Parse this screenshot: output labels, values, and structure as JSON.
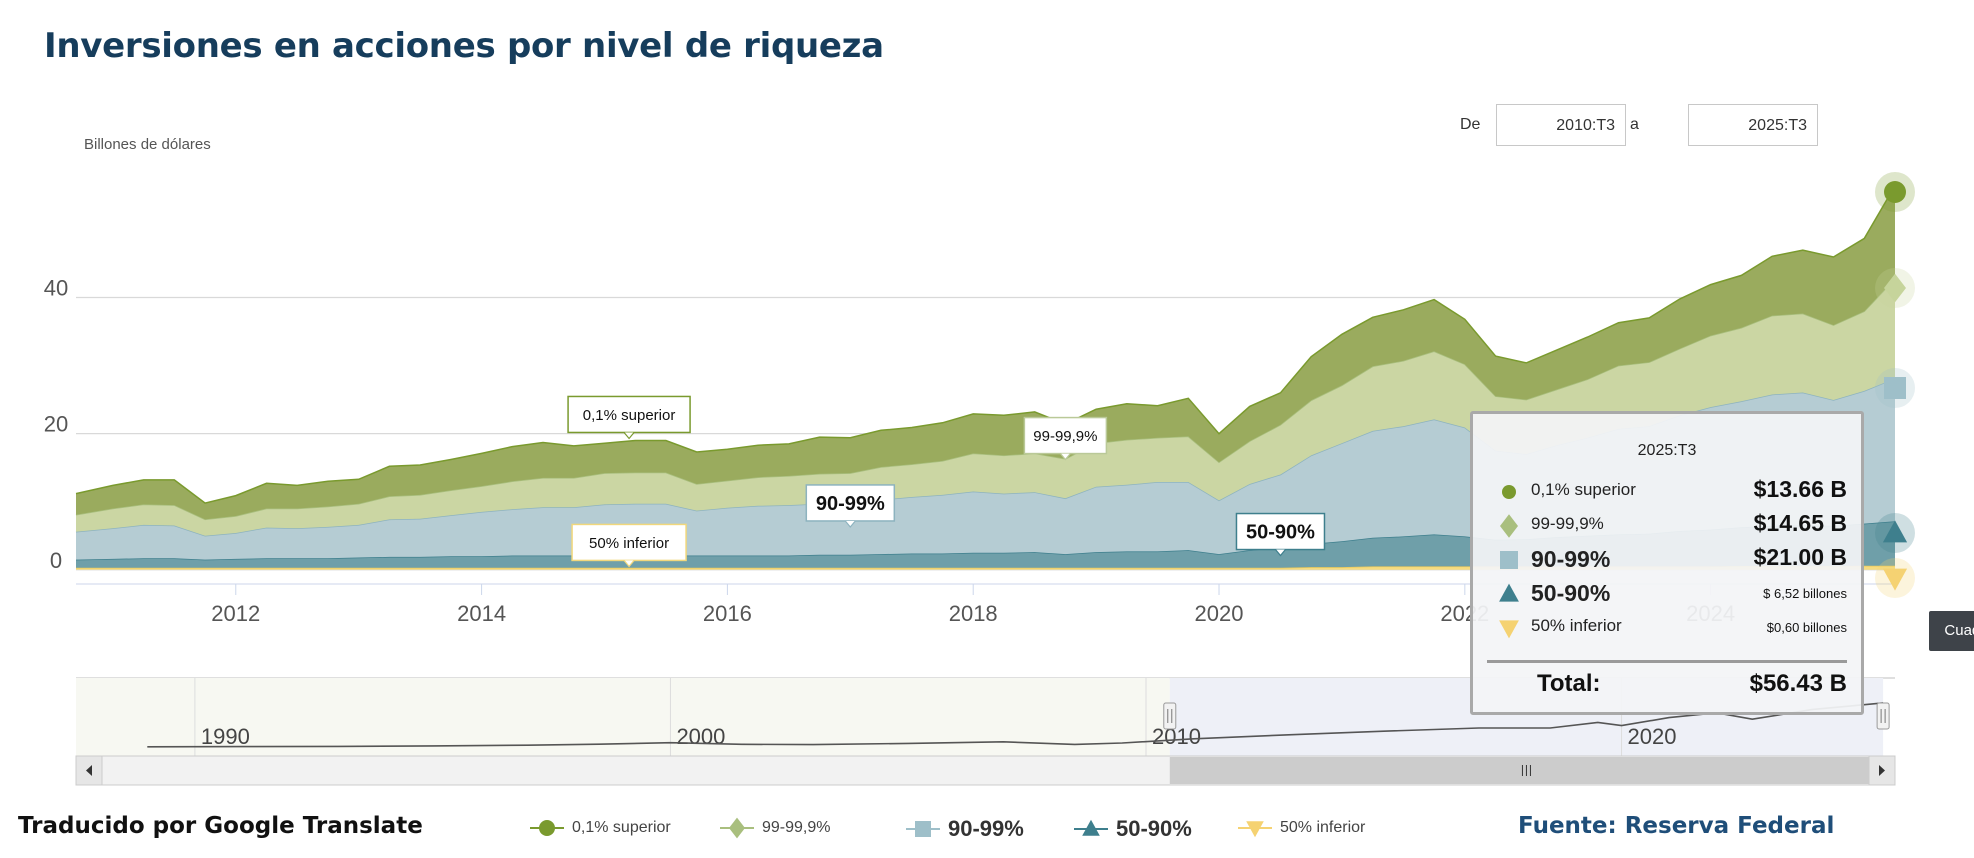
{
  "title": "Inversiones en acciones por nivel de riqueza",
  "range": {
    "from_label": "De",
    "from_value": "2010:T3",
    "to_label": "a",
    "to_value": "2025:T3"
  },
  "footer": {
    "translated": "Traducido por Google Translate",
    "source": "Fuente: Reserva Federal"
  },
  "colors": {
    "top01": "#9aab5e",
    "top01_line": "#7a9a2e",
    "p99": "#cbd6a3",
    "p99_line": "#a9bf7e",
    "p90": "#b5ccd3",
    "p90_line": "#8db3bf",
    "p50": "#6f9fa9",
    "p50_line": "#3e7f8d",
    "bottom50": "#f6dc80",
    "navigator_bg": "#eef0f7"
  },
  "tooltip": {
    "header": "2025:T3",
    "rows": [
      {
        "name": "0,1% superior",
        "value": "$13.66 B",
        "big": false,
        "small": false
      },
      {
        "name": "99-99,9%",
        "value": "$14.65 B",
        "big": false,
        "small": false
      },
      {
        "name": "90-99%",
        "value": "$21.00 B",
        "big": true,
        "small": false
      },
      {
        "name": "50-90%",
        "value": "$ 6,52 billones",
        "big": true,
        "small": true
      },
      {
        "name": "50% inferior",
        "value": "$0,60 billones",
        "big": false,
        "small": true
      }
    ],
    "total_label": "Total:",
    "total_value": "$56.43 B"
  },
  "cuadro_button": "Cuadro",
  "legend": [
    {
      "name": "0,1% superior",
      "shape": "circle",
      "big": false
    },
    {
      "name": "99-99,9%",
      "shape": "diamond",
      "big": false
    },
    {
      "name": "90-99%",
      "shape": "square",
      "big": true
    },
    {
      "name": "50-90%",
      "shape": "triangle",
      "big": true
    },
    {
      "name": "50% inferior",
      "shape": "triangle-down",
      "big": false
    }
  ],
  "chart_data": {
    "type": "area",
    "stacked": true,
    "title": "Inversiones en acciones por nivel de riqueza",
    "ylabel": "Billones de dólares",
    "xlabel": "",
    "ylim": [
      -1.5,
      58
    ],
    "yticks": [
      0,
      20,
      40
    ],
    "xticks": [
      "2012",
      "2014",
      "2016",
      "2018",
      "2020",
      "2022",
      "2024"
    ],
    "x": [
      2010.7,
      2011.0,
      2011.25,
      2011.5,
      2011.75,
      2012.0,
      2012.25,
      2012.5,
      2012.75,
      2013.0,
      2013.25,
      2013.5,
      2013.75,
      2014.0,
      2014.25,
      2014.5,
      2014.75,
      2015.0,
      2015.25,
      2015.5,
      2015.75,
      2016.0,
      2016.25,
      2016.5,
      2016.75,
      2017.0,
      2017.25,
      2017.5,
      2017.75,
      2018.0,
      2018.25,
      2018.5,
      2018.75,
      2019.0,
      2019.25,
      2019.5,
      2019.75,
      2020.0,
      2020.25,
      2020.5,
      2020.75,
      2021.0,
      2021.25,
      2021.5,
      2021.75,
      2022.0,
      2022.25,
      2022.5,
      2022.75,
      2023.0,
      2023.25,
      2023.5,
      2023.75,
      2024.0,
      2024.25,
      2024.5,
      2024.75,
      2025.0,
      2025.25,
      2025.5
    ],
    "series": [
      {
        "name": "50% inferior",
        "values": [
          0.3,
          0.3,
          0.3,
          0.3,
          0.3,
          0.3,
          0.3,
          0.3,
          0.3,
          0.3,
          0.3,
          0.3,
          0.3,
          0.3,
          0.3,
          0.3,
          0.3,
          0.3,
          0.3,
          0.3,
          0.3,
          0.3,
          0.3,
          0.3,
          0.3,
          0.3,
          0.3,
          0.3,
          0.3,
          0.3,
          0.3,
          0.3,
          0.3,
          0.3,
          0.3,
          0.3,
          0.3,
          0.3,
          0.3,
          0.3,
          0.4,
          0.4,
          0.5,
          0.5,
          0.5,
          0.5,
          0.5,
          0.5,
          0.5,
          0.5,
          0.5,
          0.5,
          0.5,
          0.5,
          0.55,
          0.55,
          0.55,
          0.55,
          0.58,
          0.6
        ]
      },
      {
        "name": "50-90%",
        "values": [
          1.2,
          1.3,
          1.4,
          1.4,
          1.2,
          1.3,
          1.4,
          1.4,
          1.4,
          1.5,
          1.6,
          1.6,
          1.7,
          1.7,
          1.8,
          1.8,
          1.8,
          1.8,
          1.8,
          1.8,
          1.8,
          1.8,
          1.8,
          1.8,
          1.9,
          1.9,
          2.0,
          2.1,
          2.1,
          2.2,
          2.2,
          2.3,
          2.0,
          2.3,
          2.4,
          2.4,
          2.6,
          2.0,
          2.6,
          3.0,
          3.4,
          3.8,
          4.2,
          4.4,
          4.7,
          4.4,
          3.9,
          4.0,
          4.3,
          4.5,
          4.7,
          4.8,
          5.2,
          5.4,
          5.7,
          5.9,
          6.0,
          5.9,
          6.2,
          6.52
        ]
      },
      {
        "name": "90-99%",
        "values": [
          4.1,
          4.5,
          4.9,
          4.8,
          3.5,
          3.8,
          4.5,
          4.4,
          4.6,
          4.8,
          5.5,
          5.6,
          6.0,
          6.5,
          6.8,
          7.1,
          7.1,
          7.5,
          7.6,
          7.6,
          6.6,
          7.0,
          7.3,
          7.4,
          7.5,
          7.6,
          8.0,
          8.3,
          8.6,
          9.0,
          8.7,
          8.8,
          8.2,
          9.6,
          9.8,
          10.2,
          10.0,
          7.9,
          9.7,
          10.7,
          13.0,
          14.4,
          15.7,
          16.2,
          16.9,
          16.0,
          13.1,
          12.5,
          13.5,
          14.4,
          15.5,
          15.8,
          17.0,
          18.0,
          18.5,
          19.3,
          19.5,
          18.5,
          19.5,
          21.0
        ]
      },
      {
        "name": "99-99,9%",
        "values": [
          2.5,
          2.9,
          3.0,
          3.0,
          2.4,
          2.5,
          2.8,
          2.9,
          3.0,
          3.1,
          3.4,
          3.5,
          3.7,
          3.8,
          4.1,
          4.3,
          4.3,
          4.6,
          4.6,
          4.6,
          3.9,
          4.0,
          4.2,
          4.3,
          4.4,
          4.4,
          4.8,
          4.8,
          5.0,
          5.6,
          5.6,
          5.7,
          5.8,
          6.4,
          6.6,
          6.5,
          6.7,
          5.6,
          6.3,
          7.3,
          8.1,
          8.5,
          9.5,
          9.6,
          10.0,
          9.3,
          8.0,
          8.0,
          8.2,
          8.6,
          9.3,
          9.4,
          9.8,
          10.5,
          10.8,
          11.6,
          11.6,
          11.0,
          11.7,
          14.65
        ]
      },
      {
        "name": "0,1% superior",
        "values": [
          3.1,
          3.4,
          3.6,
          3.7,
          2.4,
          3.0,
          3.7,
          3.4,
          3.7,
          3.6,
          4.4,
          4.4,
          4.5,
          4.8,
          5.1,
          5.2,
          4.7,
          4.4,
          4.7,
          4.7,
          4.7,
          4.6,
          4.7,
          4.7,
          5.4,
          5.2,
          5.4,
          5.4,
          5.6,
          5.8,
          5.9,
          6.1,
          5.1,
          5.0,
          5.3,
          4.7,
          5.6,
          4.2,
          5.1,
          4.7,
          6.4,
          7.5,
          7.2,
          7.5,
          7.6,
          6.6,
          5.9,
          5.4,
          5.8,
          6.2,
          6.3,
          6.5,
          7.3,
          7.5,
          7.7,
          8.7,
          9.3,
          10.0,
          10.7,
          13.66
        ]
      }
    ],
    "annotations": [
      {
        "text": "0,1% superior",
        "x": 2015.2,
        "series": "0,1% superior",
        "big": false
      },
      {
        "text": "99-99,9%",
        "x": 2018.75,
        "series": "99-99,9%",
        "big": false
      },
      {
        "text": "90-99%",
        "x": 2017.0,
        "series": "90-99%",
        "big": true
      },
      {
        "text": "50-90%",
        "x": 2020.5,
        "series": "50-90%",
        "big": true
      },
      {
        "text": "50% inferior",
        "x": 2015.2,
        "series": "50% inferior",
        "big": false
      }
    ],
    "navigator": {
      "xlim": [
        1987.5,
        2025.75
      ],
      "labels": [
        "1990",
        "2000",
        "2010",
        "2020"
      ],
      "selection": [
        2010.5,
        2025.5
      ],
      "x": [
        1989.0,
        1991.0,
        1993.0,
        1995.0,
        1997.0,
        1998.5,
        2000.0,
        2001.5,
        2003.0,
        2005.0,
        2007.0,
        2008.5,
        2009.5,
        2011.0,
        2013.0,
        2015.0,
        2017.0,
        2018.5,
        2019.5,
        2020.0,
        2021.0,
        2022.0,
        2022.75,
        2024.0,
        2025.5
      ],
      "values": [
        1.5,
        1.8,
        2.0,
        2.6,
        3.5,
        4.8,
        6.6,
        4.6,
        4.2,
        5.8,
        7.8,
        4.5,
        6.2,
        11.5,
        16.5,
        21.0,
        25.0,
        25.0,
        32.0,
        28.0,
        38.0,
        44.0,
        36.0,
        48.0,
        56.4
      ]
    }
  }
}
